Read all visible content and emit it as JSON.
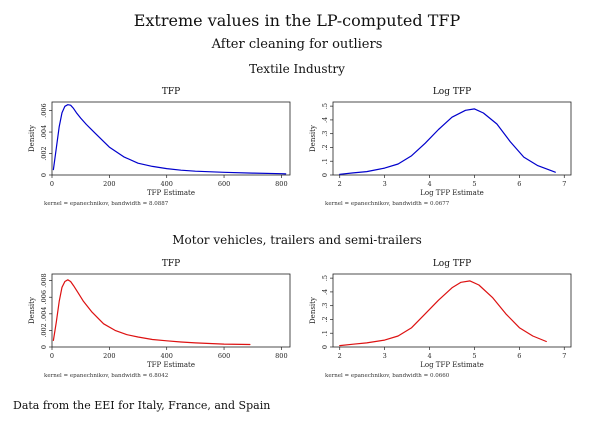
{
  "figure": {
    "title": "Extreme values in the LP-computed TFP",
    "subtitle": "After cleaning for outliers",
    "footer": "Data from the EEI for Italy, France, and Spain"
  },
  "sections": [
    {
      "label": "Textile Industry"
    },
    {
      "label": "Motor vehicles, trailers and semi-trailers"
    }
  ],
  "colors": {
    "textile": "#0000cc",
    "motor": "#dd1111"
  },
  "chart_data": [
    {
      "type": "line",
      "panel": "textile-tfp",
      "title": "TFP",
      "xlabel": "TFP Estimate",
      "ylabel": "Density",
      "note": "kernel = epanechnikov, bandwidth = 8.0887",
      "xlim": [
        0,
        830
      ],
      "ylim": [
        0,
        0.0068
      ],
      "xticks": [
        0,
        200,
        400,
        600,
        800
      ],
      "yticks": [
        0,
        0.002,
        0.004,
        0.006
      ],
      "ytick_labels": [
        "0",
        ".002",
        ".004",
        ".006"
      ],
      "series": [
        {
          "color": "#0000cc",
          "x": [
            5,
            15,
            25,
            35,
            45,
            55,
            65,
            75,
            85,
            100,
            120,
            150,
            200,
            250,
            300,
            350,
            400,
            450,
            500,
            600,
            700,
            800,
            815
          ],
          "y": [
            0.0005,
            0.0025,
            0.0045,
            0.0058,
            0.0064,
            0.00655,
            0.0065,
            0.0062,
            0.0058,
            0.0053,
            0.0047,
            0.0039,
            0.0026,
            0.0017,
            0.0011,
            0.0008,
            0.0006,
            0.00045,
            0.00035,
            0.00025,
            0.00018,
            0.00012,
            0.0001
          ]
        }
      ]
    },
    {
      "type": "line",
      "panel": "textile-logtfp",
      "title": "Log TFP",
      "xlabel": "Log TFP Estimate",
      "ylabel": "Density",
      "note": "kernel = epanechnikov, bandwidth = 0.0677",
      "xlim": [
        1.85,
        7.15
      ],
      "ylim": [
        0,
        0.53
      ],
      "xticks": [
        2,
        3,
        4,
        5,
        6,
        7
      ],
      "yticks": [
        0,
        0.1,
        0.2,
        0.3,
        0.4,
        0.5
      ],
      "ytick_labels": [
        "0",
        ".1",
        ".2",
        ".3",
        ".4",
        ".5"
      ],
      "series": [
        {
          "color": "#0000cc",
          "x": [
            2.0,
            2.3,
            2.6,
            3.0,
            3.3,
            3.6,
            3.9,
            4.2,
            4.5,
            4.8,
            5.0,
            5.2,
            5.5,
            5.8,
            6.1,
            6.4,
            6.8
          ],
          "y": [
            0.005,
            0.015,
            0.025,
            0.05,
            0.08,
            0.14,
            0.23,
            0.33,
            0.42,
            0.47,
            0.48,
            0.45,
            0.37,
            0.24,
            0.13,
            0.07,
            0.02
          ]
        }
      ]
    },
    {
      "type": "line",
      "panel": "motor-tfp",
      "title": "TFP",
      "xlabel": "TFP Estimate",
      "ylabel": "Density",
      "note": "kernel = epanechnikov, bandwidth = 6.8042",
      "xlim": [
        0,
        830
      ],
      "ylim": [
        0,
        0.0088
      ],
      "xticks": [
        0,
        200,
        400,
        600,
        800
      ],
      "yticks": [
        0,
        0.002,
        0.004,
        0.006,
        0.008
      ],
      "ytick_labels": [
        "0",
        ".002",
        ".004",
        ".006",
        ".008"
      ],
      "series": [
        {
          "color": "#dd1111",
          "x": [
            5,
            15,
            25,
            35,
            45,
            55,
            65,
            75,
            90,
            110,
            140,
            180,
            220,
            260,
            300,
            350,
            400,
            450,
            500,
            600,
            690
          ],
          "y": [
            0.0008,
            0.003,
            0.0055,
            0.0072,
            0.0079,
            0.0081,
            0.0079,
            0.0074,
            0.0066,
            0.0055,
            0.0042,
            0.0028,
            0.002,
            0.0015,
            0.0012,
            0.0009,
            0.00075,
            0.0006,
            0.0005,
            0.00035,
            0.0003
          ]
        }
      ]
    },
    {
      "type": "line",
      "panel": "motor-logtfp",
      "title": "Log TFP",
      "xlabel": "Log TFP Estimate",
      "ylabel": "Density",
      "note": "kernel = epanechnikov, bandwidth = 0.0660",
      "xlim": [
        1.85,
        7.15
      ],
      "ylim": [
        0,
        0.53
      ],
      "xticks": [
        2,
        3,
        4,
        5,
        6,
        7
      ],
      "yticks": [
        0,
        0.1,
        0.2,
        0.3,
        0.4,
        0.5
      ],
      "ytick_labels": [
        "0",
        ".1",
        ".2",
        ".3",
        ".4",
        ".5"
      ],
      "series": [
        {
          "color": "#dd1111",
          "x": [
            2.0,
            2.3,
            2.6,
            3.0,
            3.3,
            3.6,
            3.9,
            4.2,
            4.5,
            4.7,
            4.9,
            5.1,
            5.4,
            5.7,
            6.0,
            6.3,
            6.6
          ],
          "y": [
            0.01,
            0.02,
            0.03,
            0.05,
            0.08,
            0.14,
            0.24,
            0.34,
            0.43,
            0.47,
            0.48,
            0.45,
            0.36,
            0.24,
            0.14,
            0.08,
            0.04
          ]
        }
      ]
    }
  ]
}
